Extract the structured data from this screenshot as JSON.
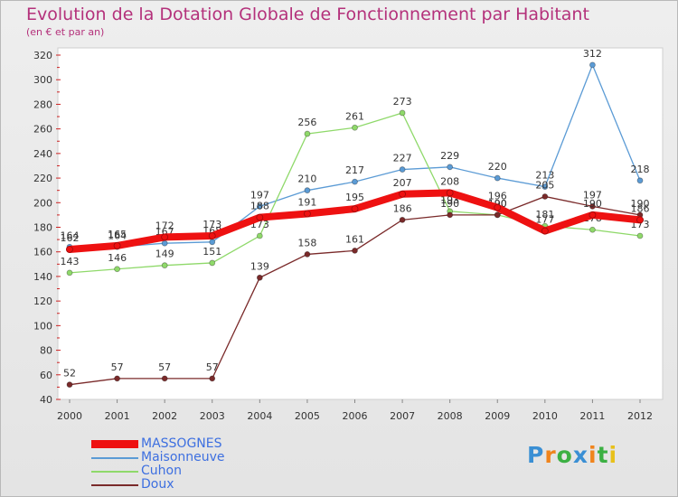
{
  "title": "Evolution de la Dotation Globale de Fonctionnement par Habitant",
  "subtitle": "(en € et par an)",
  "logo": {
    "letters": [
      "P",
      "r",
      "o",
      "x",
      "i",
      "t",
      "i"
    ],
    "colors": [
      "#3a8fd4",
      "#f0841c",
      "#3cb043",
      "#3a8fd4",
      "#f0841c",
      "#3cb043",
      "#e8c01a"
    ]
  },
  "chart_data": {
    "type": "line",
    "title": "Evolution de la Dotation Globale de Fonctionnement par Habitant",
    "subtitle": "(en € et par an)",
    "xlabel": "",
    "ylabel": "",
    "ylim": [
      40,
      320
    ],
    "yticks": [
      40,
      60,
      80,
      100,
      120,
      140,
      160,
      180,
      200,
      220,
      240,
      260,
      280,
      300,
      320
    ],
    "grid": false,
    "legend_position": "bottom-left",
    "categories": [
      "2000",
      "2001",
      "2002",
      "2003",
      "2004",
      "2005",
      "2006",
      "2007",
      "2008",
      "2009",
      "2010",
      "2011",
      "2012"
    ],
    "series": [
      {
        "name": "MASSOGNES",
        "color": "#ee1111",
        "emphasis": true,
        "values": [
          162,
          165,
          172,
          173,
          188,
          191,
          195,
          207,
          208,
          196,
          177,
          190,
          186
        ],
        "labels": [
          "162",
          "165",
          "172",
          "173",
          "188",
          "191",
          "195",
          "207",
          "208",
          "196",
          "177",
          "190",
          "186"
        ]
      },
      {
        "name": "Maisonneuve",
        "color": "#5b9bd5",
        "values": [
          164,
          164,
          167,
          168,
          197,
          210,
          217,
          227,
          229,
          220,
          213,
          312,
          218
        ],
        "labels": [
          "164",
          "164",
          "167",
          "168",
          "197",
          "210",
          "217",
          "227",
          "229",
          "220",
          "213",
          "312",
          "218"
        ]
      },
      {
        "name": "Cuhon",
        "color": "#8fd96a",
        "values": [
          143,
          146,
          149,
          151,
          173,
          256,
          261,
          273,
          193,
          190,
          181,
          178,
          173
        ],
        "labels": [
          "143",
          "146",
          "149",
          "151",
          "173",
          "256",
          "261",
          "273",
          "193",
          "190",
          "181",
          "178",
          "173"
        ]
      },
      {
        "name": "Doux",
        "color": "#7a2a2a",
        "values": [
          52,
          57,
          57,
          57,
          139,
          158,
          161,
          186,
          190,
          190,
          205,
          197,
          190
        ],
        "labels": [
          "52",
          "57",
          "57",
          "57",
          "139",
          "158",
          "161",
          "186",
          "190",
          "190",
          "205",
          "197",
          "190"
        ]
      }
    ]
  }
}
